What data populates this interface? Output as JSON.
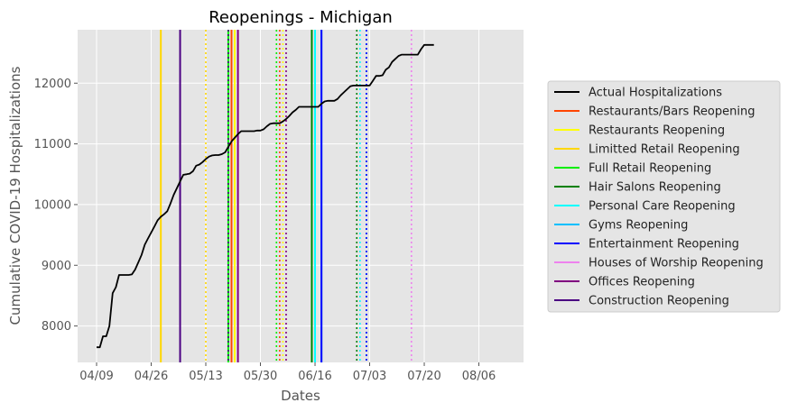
{
  "chart_data": {
    "type": "line",
    "title": "Reopenings - Michigan",
    "xlabel": "Dates",
    "ylabel": "Cumulative COVID-19 Hospitalizations",
    "xlim": [
      "2020-04-09",
      "2020-08-14"
    ],
    "ylim": [
      7400,
      12880
    ],
    "x_ticks": [
      {
        "date": "2020-04-09",
        "label": "04/09"
      },
      {
        "date": "2020-04-26",
        "label": "04/26"
      },
      {
        "date": "2020-05-13",
        "label": "05/13"
      },
      {
        "date": "2020-05-30",
        "label": "05/30"
      },
      {
        "date": "2020-06-16",
        "label": "06/16"
      },
      {
        "date": "2020-07-03",
        "label": "07/03"
      },
      {
        "date": "2020-07-20",
        "label": "07/20"
      },
      {
        "date": "2020-08-06",
        "label": "08/06"
      }
    ],
    "y_ticks": [
      8000,
      9000,
      10000,
      11000,
      12000
    ],
    "grid": true,
    "legend_position": "right",
    "series": [
      {
        "name": "Actual Hospitalizations",
        "color": "#000000",
        "points": [
          [
            "2020-04-09",
            7650
          ],
          [
            "2020-04-10",
            7650
          ],
          [
            "2020-04-11",
            7830
          ],
          [
            "2020-04-12",
            7830
          ],
          [
            "2020-04-13",
            8000
          ],
          [
            "2020-04-14",
            8540
          ],
          [
            "2020-04-15",
            8640
          ],
          [
            "2020-04-16",
            8840
          ],
          [
            "2020-04-17",
            8840
          ],
          [
            "2020-04-18",
            8840
          ],
          [
            "2020-04-19",
            8840
          ],
          [
            "2020-04-20",
            8850
          ],
          [
            "2020-04-21",
            8930
          ],
          [
            "2020-04-22",
            9050
          ],
          [
            "2020-04-23",
            9170
          ],
          [
            "2020-04-24",
            9340
          ],
          [
            "2020-04-25",
            9440
          ],
          [
            "2020-04-26",
            9540
          ],
          [
            "2020-04-27",
            9640
          ],
          [
            "2020-04-28",
            9740
          ],
          [
            "2020-04-29",
            9800
          ],
          [
            "2020-04-30",
            9840
          ],
          [
            "2020-05-01",
            9890
          ],
          [
            "2020-05-02",
            10020
          ],
          [
            "2020-05-03",
            10160
          ],
          [
            "2020-05-04",
            10270
          ],
          [
            "2020-05-05",
            10380
          ],
          [
            "2020-05-06",
            10490
          ],
          [
            "2020-05-07",
            10500
          ],
          [
            "2020-05-08",
            10510
          ],
          [
            "2020-05-09",
            10550
          ],
          [
            "2020-05-10",
            10640
          ],
          [
            "2020-05-11",
            10660
          ],
          [
            "2020-05-12",
            10700
          ],
          [
            "2020-05-13",
            10750
          ],
          [
            "2020-05-14",
            10790
          ],
          [
            "2020-05-15",
            10810
          ],
          [
            "2020-05-16",
            10815
          ],
          [
            "2020-05-17",
            10815
          ],
          [
            "2020-05-18",
            10830
          ],
          [
            "2020-05-19",
            10860
          ],
          [
            "2020-05-20",
            10950
          ],
          [
            "2020-05-21",
            11040
          ],
          [
            "2020-05-22",
            11100
          ],
          [
            "2020-05-23",
            11160
          ],
          [
            "2020-05-24",
            11210
          ],
          [
            "2020-05-25",
            11210
          ],
          [
            "2020-05-26",
            11210
          ],
          [
            "2020-05-27",
            11210
          ],
          [
            "2020-05-28",
            11210
          ],
          [
            "2020-05-29",
            11220
          ],
          [
            "2020-05-30",
            11220
          ],
          [
            "2020-05-31",
            11240
          ],
          [
            "2020-06-01",
            11290
          ],
          [
            "2020-06-02",
            11330
          ],
          [
            "2020-06-03",
            11340
          ],
          [
            "2020-06-04",
            11340
          ],
          [
            "2020-06-05",
            11340
          ],
          [
            "2020-06-06",
            11370
          ],
          [
            "2020-06-07",
            11410
          ],
          [
            "2020-06-08",
            11460
          ],
          [
            "2020-06-09",
            11520
          ],
          [
            "2020-06-10",
            11560
          ],
          [
            "2020-06-11",
            11610
          ],
          [
            "2020-06-12",
            11610
          ],
          [
            "2020-06-13",
            11610
          ],
          [
            "2020-06-14",
            11610
          ],
          [
            "2020-06-15",
            11610
          ],
          [
            "2020-06-16",
            11610
          ],
          [
            "2020-06-17",
            11610
          ],
          [
            "2020-06-18",
            11660
          ],
          [
            "2020-06-19",
            11700
          ],
          [
            "2020-06-20",
            11710
          ],
          [
            "2020-06-21",
            11710
          ],
          [
            "2020-06-22",
            11710
          ],
          [
            "2020-06-23",
            11740
          ],
          [
            "2020-06-24",
            11800
          ],
          [
            "2020-06-25",
            11850
          ],
          [
            "2020-06-26",
            11900
          ],
          [
            "2020-06-27",
            11950
          ],
          [
            "2020-06-28",
            11960
          ],
          [
            "2020-06-29",
            11960
          ],
          [
            "2020-06-30",
            11960
          ],
          [
            "2020-07-01",
            11960
          ],
          [
            "2020-07-02",
            11960
          ],
          [
            "2020-07-03",
            11960
          ],
          [
            "2020-07-04",
            12040
          ],
          [
            "2020-07-05",
            12120
          ],
          [
            "2020-07-06",
            12120
          ],
          [
            "2020-07-07",
            12130
          ],
          [
            "2020-07-08",
            12220
          ],
          [
            "2020-07-09",
            12260
          ],
          [
            "2020-07-10",
            12350
          ],
          [
            "2020-07-11",
            12400
          ],
          [
            "2020-07-12",
            12450
          ],
          [
            "2020-07-13",
            12470
          ],
          [
            "2020-07-14",
            12470
          ],
          [
            "2020-07-15",
            12470
          ],
          [
            "2020-07-16",
            12470
          ],
          [
            "2020-07-17",
            12470
          ],
          [
            "2020-07-18",
            12470
          ],
          [
            "2020-07-19",
            12560
          ],
          [
            "2020-07-20",
            12630
          ],
          [
            "2020-07-21",
            12630
          ],
          [
            "2020-07-22",
            12630
          ],
          [
            "2020-07-23",
            12630
          ]
        ]
      }
    ],
    "reopenings": [
      {
        "name": "Restaurants/Bars Reopening",
        "color": "#ff4500",
        "dates": [
          [
            "2020-05-21",
            "solid"
          ],
          [
            "2020-06-05",
            "dotted"
          ]
        ]
      },
      {
        "name": "Restaurants Reopening",
        "color": "#ffff00",
        "dates": [
          [
            "2020-05-22",
            "solid"
          ],
          [
            "2020-06-06",
            "dotted"
          ]
        ]
      },
      {
        "name": "Limitted Retail Reopening",
        "color": "#ffd700",
        "dates": [
          [
            "2020-04-29",
            "solid"
          ],
          [
            "2020-05-13",
            "dotted"
          ]
        ]
      },
      {
        "name": "Full Retail Reopening",
        "color": "#00ee00",
        "dates": [
          [
            "2020-05-20",
            "solid"
          ],
          [
            "2020-06-04",
            "dotted"
          ]
        ]
      },
      {
        "name": "Hair Salons Reopening",
        "color": "#008000",
        "dates": [
          [
            "2020-06-15",
            "solid"
          ],
          [
            "2020-06-29",
            "dotted"
          ]
        ]
      },
      {
        "name": "Personal Care Reopening",
        "color": "#00ffff",
        "dates": [
          [
            "2020-06-16",
            "solid"
          ],
          [
            "2020-06-30",
            "dotted"
          ]
        ]
      },
      {
        "name": "Gyms Reopening",
        "color": "#00bfff",
        "dates": [
          [
            "2020-06-18",
            "solid"
          ],
          [
            "2020-07-02",
            "dotted"
          ]
        ]
      },
      {
        "name": "Entertainment Reopening",
        "color": "#0000ff",
        "dates": [
          [
            "2020-06-18",
            "solid"
          ],
          [
            "2020-07-02",
            "dotted"
          ]
        ]
      },
      {
        "name": "Houses of Worship Reopening",
        "color": "#ee82ee",
        "dates": [
          [
            "2020-07-16",
            "dotted"
          ]
        ]
      },
      {
        "name": "Offices Reopening",
        "color": "#800080",
        "dates": [
          [
            "2020-05-23",
            "solid"
          ],
          [
            "2020-06-07",
            "dotted"
          ]
        ]
      },
      {
        "name": "Construction Reopening",
        "color": "#4b0082",
        "dates": [
          [
            "2020-05-05",
            "solid"
          ],
          [
            "2020-05-20",
            "dotted"
          ]
        ]
      }
    ]
  }
}
